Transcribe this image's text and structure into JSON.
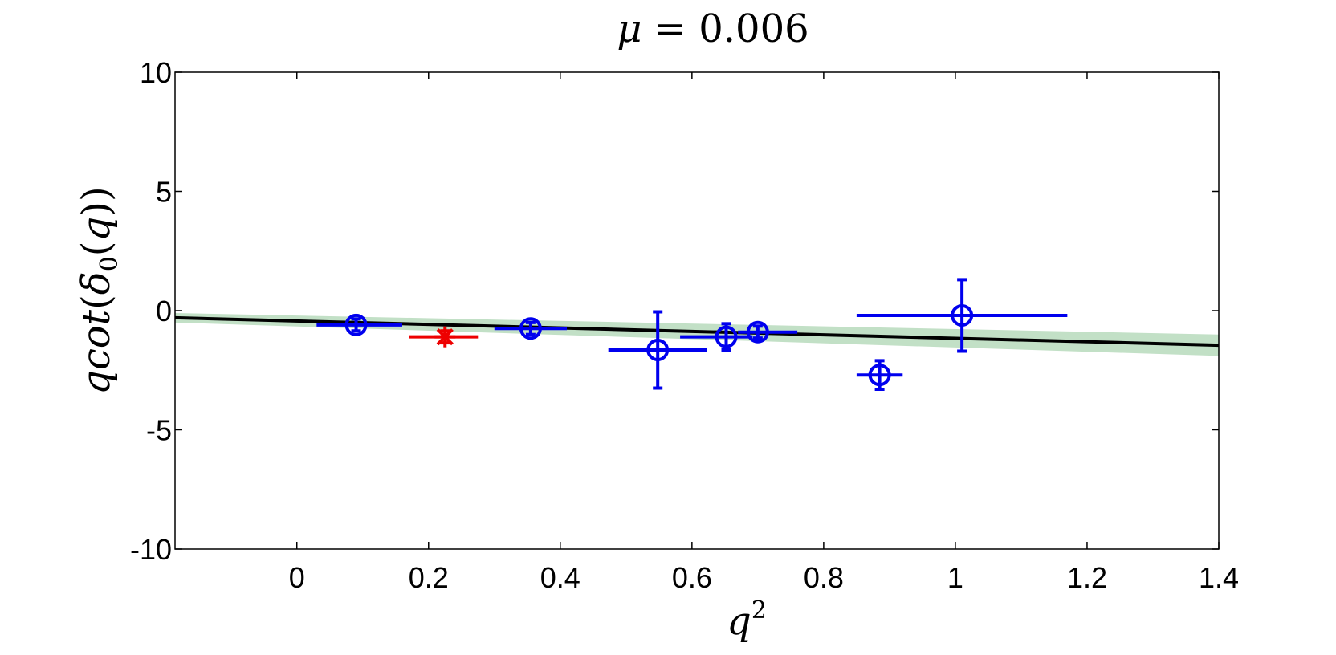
{
  "chart_data": {
    "type": "scatter",
    "title": {
      "mu": "μ",
      "eq": " = ",
      "value": "0.006"
    },
    "xlabel": {
      "base": "q",
      "sup": "2"
    },
    "ylabel": {
      "pre": "qcot",
      "open1": "(",
      "delta": "δ",
      "sub": "0",
      "open2": "(",
      "arg": "q",
      "close": "))"
    },
    "xlim": [
      -0.185,
      1.4
    ],
    "ylim": [
      -10,
      10
    ],
    "xticks": [
      0,
      0.2,
      0.4,
      0.6,
      0.8,
      1,
      1.2,
      1.4
    ],
    "xtick_labels": [
      "0",
      "0.2",
      "0.4",
      "0.6",
      "0.8",
      "1",
      "1.2",
      "1.4"
    ],
    "yticks": [
      10,
      5,
      0,
      -5,
      -10
    ],
    "ytick_labels": [
      "10",
      "5",
      "0",
      "-5",
      "-10"
    ],
    "grid": false,
    "fit_line": {
      "x": [
        -0.185,
        1.4
      ],
      "y": [
        -0.3,
        -1.45
      ],
      "color": "#000000"
    },
    "fit_band": {
      "x": [
        -0.185,
        1.4
      ],
      "y_low": [
        -0.5,
        -1.9
      ],
      "y_high": [
        -0.1,
        -1.0
      ],
      "color": "#c2e0c6"
    },
    "series": [
      {
        "marker": "circle",
        "color": "#0000ee",
        "points": [
          {
            "x": 0.09,
            "y": -0.6,
            "xerr": [
              0.06,
              0.07
            ],
            "yerr": [
              0.25,
              0.25
            ]
          },
          {
            "x": 0.355,
            "y": -0.75,
            "xerr": [
              0.055,
              0.055
            ],
            "yerr": [
              0.25,
              0.25
            ]
          },
          {
            "x": 0.548,
            "y": -1.65,
            "xerr": [
              0.075,
              0.075
            ],
            "yerr": [
              1.6,
              1.6
            ]
          },
          {
            "x": 0.652,
            "y": -1.1,
            "xerr": [
              0.07,
              0.04
            ],
            "yerr": [
              0.55,
              0.55
            ]
          },
          {
            "x": 0.7,
            "y": -0.9,
            "xerr": [
              0.03,
              0.06
            ],
            "yerr": [
              0.25,
              0.25
            ]
          },
          {
            "x": 0.885,
            "y": -2.7,
            "xerr": [
              0.035,
              0.035
            ],
            "yerr": [
              0.6,
              0.6
            ]
          },
          {
            "x": 1.01,
            "y": -0.2,
            "xerr": [
              0.16,
              0.16
            ],
            "yerr": [
              1.5,
              1.5
            ]
          }
        ]
      },
      {
        "marker": "star",
        "color": "#ee0000",
        "points": [
          {
            "x": 0.225,
            "y": -1.1,
            "xerr": [
              0.055,
              0.05
            ],
            "yerr": [
              0.25,
              0.25
            ]
          }
        ]
      }
    ]
  }
}
